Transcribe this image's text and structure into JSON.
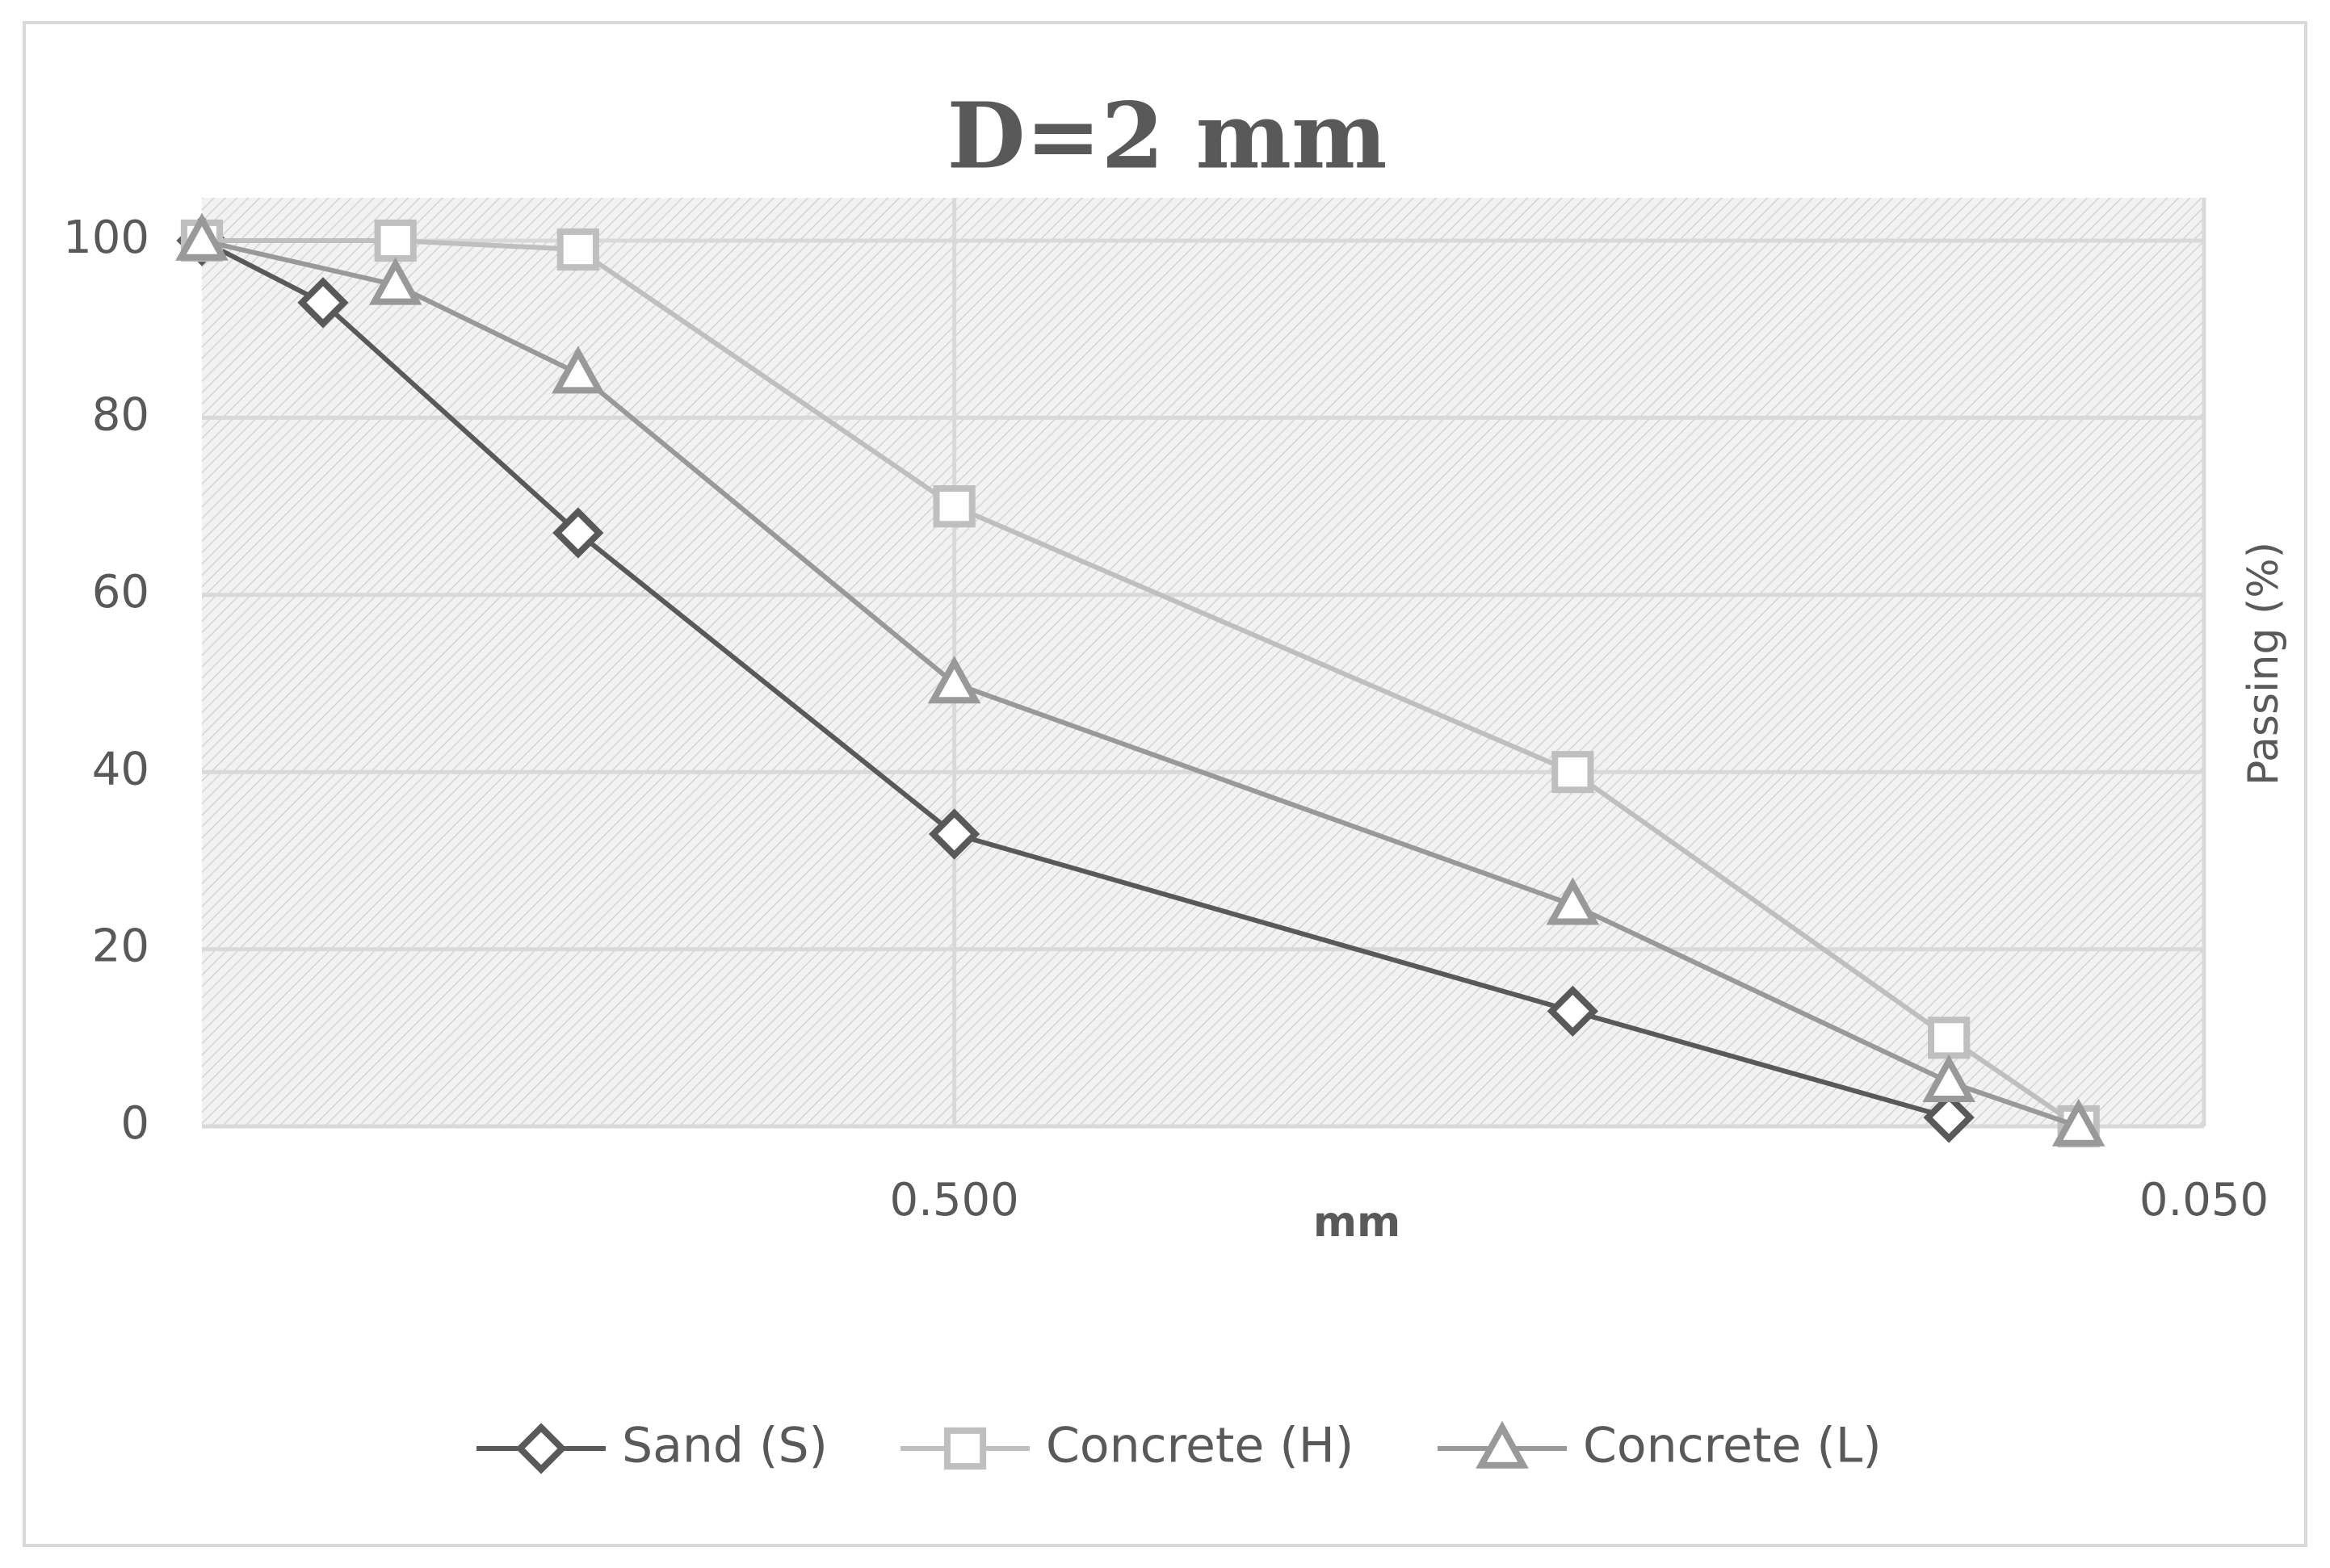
{
  "chart_data": {
    "type": "line",
    "title": "D=2 mm",
    "x_label": "mm",
    "y_label": "Passing (%)",
    "xscale": "log",
    "xlim": [
      2,
      0.05
    ],
    "xticks": [
      {
        "value": 0.5,
        "label": "0.500"
      },
      {
        "value": 0.05,
        "label": "0.050"
      }
    ],
    "ylim": [
      0,
      100
    ],
    "yticks": [
      0,
      20,
      40,
      60,
      80,
      100
    ],
    "grid": true,
    "legend": "bottom",
    "series": [
      {
        "name": "Sand (S)",
        "color": "#595959",
        "marker": "diamond",
        "x": [
          2,
          1.6,
          1.0,
          0.5,
          0.16,
          0.08
        ],
        "values": [
          100,
          93,
          67,
          33,
          13,
          1
        ]
      },
      {
        "name": "Concrete (H)",
        "color": "#bfbfbf",
        "marker": "square",
        "x": [
          2,
          1.4,
          1.0,
          0.5,
          0.16,
          0.08,
          0.063
        ],
        "values": [
          100,
          100,
          99,
          70,
          40,
          10,
          0
        ]
      },
      {
        "name": "Concrete (L)",
        "color": "#999999",
        "marker": "triangle",
        "x": [
          2,
          1.4,
          1.0,
          0.5,
          0.16,
          0.08,
          0.063
        ],
        "values": [
          100,
          95,
          85,
          50,
          25,
          5,
          0
        ]
      }
    ]
  }
}
